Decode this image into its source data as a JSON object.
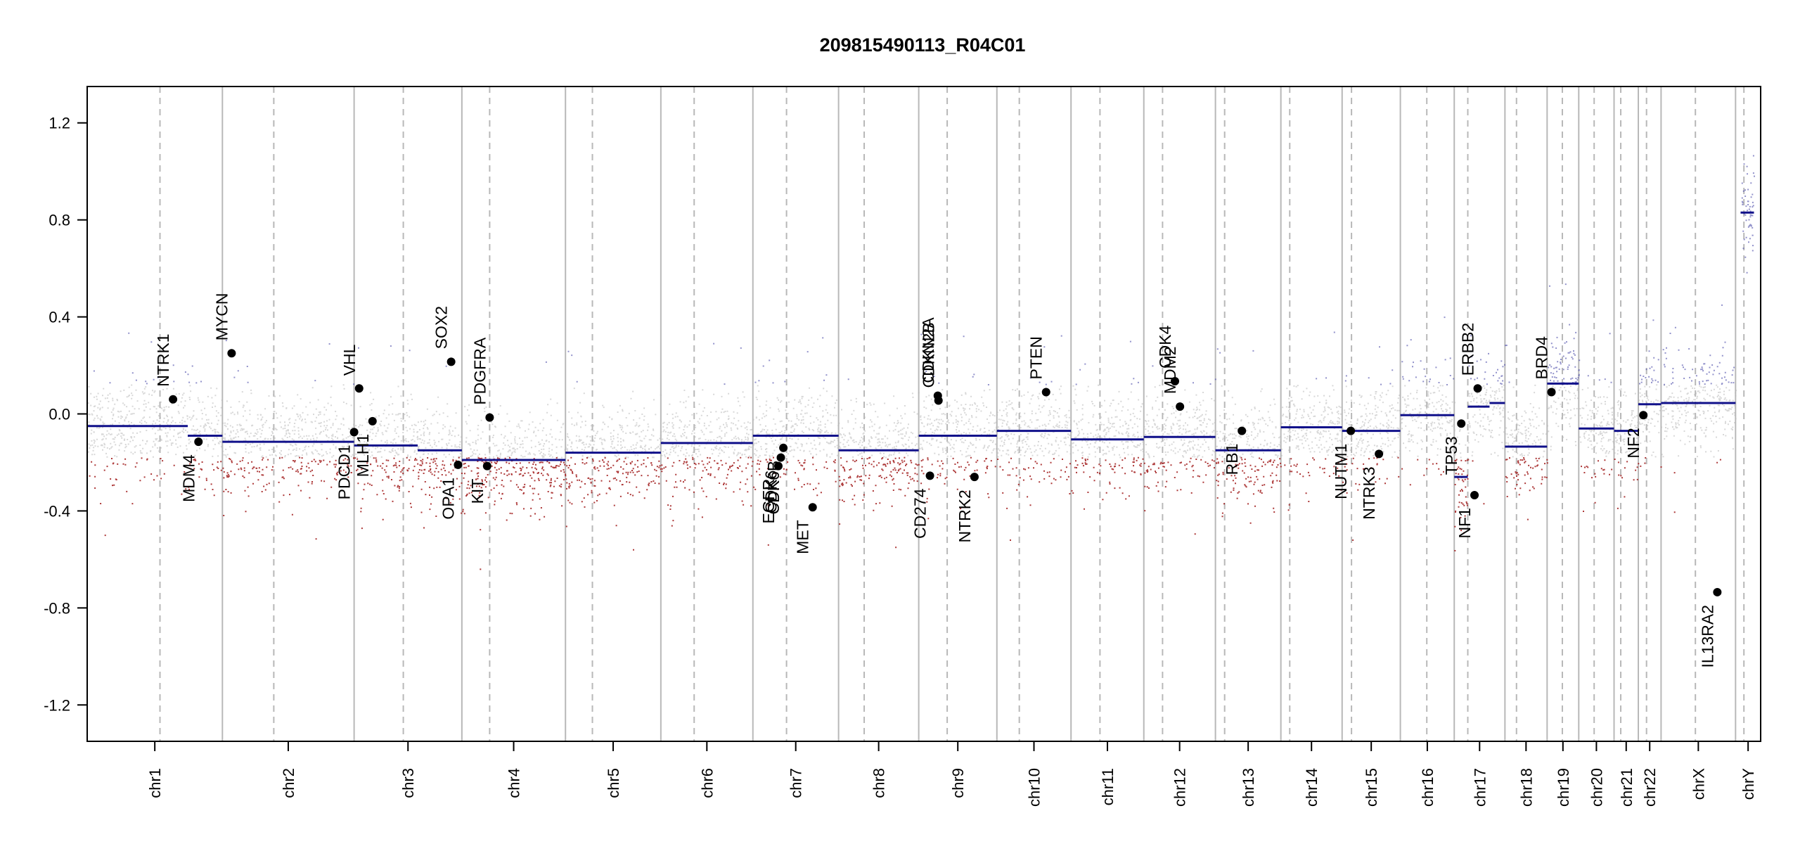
{
  "chart_data": {
    "type": "scatter",
    "title": "209815490113_R04C01",
    "xlabel": "",
    "ylabel": "",
    "ylim": [
      -1.35,
      1.35
    ],
    "y_ticks": [
      {
        "value": 1.2,
        "label": "1.2"
      },
      {
        "value": 0.8,
        "label": "0.8"
      },
      {
        "value": 0.4,
        "label": "0.4"
      },
      {
        "value": 0.0,
        "label": "0.0"
      },
      {
        "value": -0.4,
        "label": "-0.4"
      },
      {
        "value": -0.8,
        "label": "-0.8"
      },
      {
        "value": -1.2,
        "label": "-1.2"
      }
    ],
    "grid": false,
    "colors": {
      "gain": "#4a4aa8",
      "loss": "#a01818",
      "neutral": "#b8b8b8",
      "segment": "#10108a",
      "gene": "#000000",
      "divider": "#b8b8b8"
    },
    "chromosomes": [
      {
        "name": "chr1",
        "start": 0.0,
        "end": 0.0808,
        "centromere": 0.0435
      },
      {
        "name": "chr2",
        "start": 0.0808,
        "end": 0.1595,
        "centromere": 0.1115
      },
      {
        "name": "chr3",
        "start": 0.1595,
        "end": 0.2239,
        "centromere": 0.1889
      },
      {
        "name": "chr4",
        "start": 0.2239,
        "end": 0.2858,
        "centromere": 0.2405
      },
      {
        "name": "chr5",
        "start": 0.2858,
        "end": 0.3428,
        "centromere": 0.3019
      },
      {
        "name": "chr6",
        "start": 0.3428,
        "end": 0.3978,
        "centromere": 0.3627
      },
      {
        "name": "chr7",
        "start": 0.3978,
        "end": 0.449,
        "centromere": 0.4179
      },
      {
        "name": "chr8",
        "start": 0.449,
        "end": 0.4969,
        "centromere": 0.4643
      },
      {
        "name": "chr9",
        "start": 0.4969,
        "end": 0.5436,
        "centromere": 0.5139
      },
      {
        "name": "chr10",
        "start": 0.5436,
        "end": 0.5879,
        "centromere": 0.557
      },
      {
        "name": "chr11",
        "start": 0.5879,
        "end": 0.6314,
        "centromere": 0.6052
      },
      {
        "name": "chr12",
        "start": 0.6314,
        "end": 0.6742,
        "centromere": 0.6426
      },
      {
        "name": "chr13",
        "start": 0.6742,
        "end": 0.7133,
        "centromere": 0.6797
      },
      {
        "name": "chr14",
        "start": 0.7133,
        "end": 0.7499,
        "centromere": 0.7186
      },
      {
        "name": "chr15",
        "start": 0.7499,
        "end": 0.7847,
        "centromere": 0.7555
      },
      {
        "name": "chr16",
        "start": 0.7847,
        "end": 0.8169,
        "centromere": 0.8005
      },
      {
        "name": "chr17",
        "start": 0.8169,
        "end": 0.8472,
        "centromere": 0.825
      },
      {
        "name": "chr18",
        "start": 0.8472,
        "end": 0.8724,
        "centromere": 0.8541
      },
      {
        "name": "chr19",
        "start": 0.8724,
        "end": 0.8913,
        "centromere": 0.8815
      },
      {
        "name": "chr20",
        "start": 0.8913,
        "end": 0.9124,
        "centromere": 0.9005
      },
      {
        "name": "chr21",
        "start": 0.9124,
        "end": 0.9269,
        "centromere": 0.9164
      },
      {
        "name": "chr22",
        "start": 0.9269,
        "end": 0.9405,
        "centromere": 0.9318
      },
      {
        "name": "chrX",
        "start": 0.9405,
        "end": 0.985,
        "centromere": 0.961
      },
      {
        "name": "chrY",
        "start": 0.985,
        "end": 1.0,
        "centromere": 0.99
      }
    ],
    "segments": [
      {
        "x0": 0.0,
        "x1": 0.0601,
        "y": -0.05
      },
      {
        "x0": 0.0601,
        "x1": 0.0808,
        "y": -0.09
      },
      {
        "x0": 0.0808,
        "x1": 0.1595,
        "y": -0.115
      },
      {
        "x0": 0.1595,
        "x1": 0.1975,
        "y": -0.13
      },
      {
        "x0": 0.1975,
        "x1": 0.2239,
        "y": -0.15
      },
      {
        "x0": 0.2239,
        "x1": 0.2858,
        "y": -0.19
      },
      {
        "x0": 0.2858,
        "x1": 0.3428,
        "y": -0.16
      },
      {
        "x0": 0.3428,
        "x1": 0.3978,
        "y": -0.12
      },
      {
        "x0": 0.3978,
        "x1": 0.449,
        "y": -0.09
      },
      {
        "x0": 0.449,
        "x1": 0.4969,
        "y": -0.15
      },
      {
        "x0": 0.4969,
        "x1": 0.5436,
        "y": -0.09
      },
      {
        "x0": 0.5436,
        "x1": 0.5879,
        "y": -0.07
      },
      {
        "x0": 0.5879,
        "x1": 0.6314,
        "y": -0.105
      },
      {
        "x0": 0.6314,
        "x1": 0.6742,
        "y": -0.095
      },
      {
        "x0": 0.6742,
        "x1": 0.7133,
        "y": -0.15
      },
      {
        "x0": 0.7133,
        "x1": 0.7499,
        "y": -0.055
      },
      {
        "x0": 0.7499,
        "x1": 0.7847,
        "y": -0.07
      },
      {
        "x0": 0.7847,
        "x1": 0.8169,
        "y": -0.005
      },
      {
        "x0": 0.8169,
        "x1": 0.825,
        "y": -0.26
      },
      {
        "x0": 0.825,
        "x1": 0.838,
        "y": 0.03
      },
      {
        "x0": 0.838,
        "x1": 0.8472,
        "y": 0.045
      },
      {
        "x0": 0.8472,
        "x1": 0.8724,
        "y": -0.135
      },
      {
        "x0": 0.8724,
        "x1": 0.8913,
        "y": 0.125
      },
      {
        "x0": 0.8913,
        "x1": 0.9124,
        "y": -0.06
      },
      {
        "x0": 0.9124,
        "x1": 0.9269,
        "y": -0.07
      },
      {
        "x0": 0.9269,
        "x1": 0.9405,
        "y": 0.04
      },
      {
        "x0": 0.9405,
        "x1": 0.985,
        "y": 0.045
      },
      {
        "x0": 0.988,
        "x1": 0.996,
        "y": 0.83
      }
    ],
    "genes": [
      {
        "name": "NTRK1",
        "x": 0.0513,
        "y": 0.06,
        "label_side": "above"
      },
      {
        "name": "MDM4",
        "x": 0.0665,
        "y": -0.115,
        "label_side": "below"
      },
      {
        "name": "MYCN",
        "x": 0.0863,
        "y": 0.25,
        "label_side": "above"
      },
      {
        "name": "PDCD1",
        "x": 0.1595,
        "y": -0.075,
        "label_side": "below"
      },
      {
        "name": "VHL",
        "x": 0.1625,
        "y": 0.105,
        "label_side": "above"
      },
      {
        "name": "MLH1",
        "x": 0.1705,
        "y": -0.03,
        "label_side": "below"
      },
      {
        "name": "SOX2",
        "x": 0.2175,
        "y": 0.215,
        "label_side": "above"
      },
      {
        "name": "OPA1",
        "x": 0.2216,
        "y": -0.21,
        "label_side": "below"
      },
      {
        "name": "KIT",
        "x": 0.239,
        "y": -0.215,
        "label_side": "below"
      },
      {
        "name": "PDGFRA",
        "x": 0.2405,
        "y": -0.015,
        "label_side": "above"
      },
      {
        "name": "EGFR",
        "x": 0.413,
        "y": -0.215,
        "label_side": "below"
      },
      {
        "name": "CDK6",
        "x": 0.4145,
        "y": -0.18,
        "label_side": "below"
      },
      {
        "name": "CDK6B",
        "x": 0.416,
        "y": -0.14,
        "label_side": "below"
      },
      {
        "name": "MET",
        "x": 0.4335,
        "y": -0.385,
        "label_side": "below"
      },
      {
        "name": "CD274",
        "x": 0.5036,
        "y": -0.255,
        "label_side": "below"
      },
      {
        "name": "CDKN2A",
        "x": 0.5083,
        "y": 0.075,
        "label_side": "above"
      },
      {
        "name": "CDKN2B",
        "x": 0.5087,
        "y": 0.055,
        "label_side": "above"
      },
      {
        "name": "NTRK2",
        "x": 0.5302,
        "y": -0.26,
        "label_side": "below"
      },
      {
        "name": "PTEN",
        "x": 0.573,
        "y": 0.09,
        "label_side": "above"
      },
      {
        "name": "CDK4",
        "x": 0.65,
        "y": 0.135,
        "label_side": "above"
      },
      {
        "name": "MDM2",
        "x": 0.653,
        "y": 0.03,
        "label_side": "above"
      },
      {
        "name": "RB1",
        "x": 0.69,
        "y": -0.07,
        "label_side": "below"
      },
      {
        "name": "NUTM1",
        "x": 0.7551,
        "y": -0.07,
        "label_side": "below"
      },
      {
        "name": "NTRK3",
        "x": 0.7719,
        "y": -0.165,
        "label_side": "below"
      },
      {
        "name": "TP53",
        "x": 0.8211,
        "y": -0.04,
        "label_side": "below"
      },
      {
        "name": "NF1",
        "x": 0.829,
        "y": -0.335,
        "label_side": "below"
      },
      {
        "name": "ERBB2",
        "x": 0.8309,
        "y": 0.105,
        "label_side": "above"
      },
      {
        "name": "BRD4",
        "x": 0.875,
        "y": 0.09,
        "label_side": "above"
      },
      {
        "name": "NF2",
        "x": 0.9299,
        "y": -0.005,
        "label_side": "below"
      },
      {
        "name": "IL13RA2",
        "x": 0.9741,
        "y": -0.735,
        "label_side": "below"
      }
    ]
  }
}
